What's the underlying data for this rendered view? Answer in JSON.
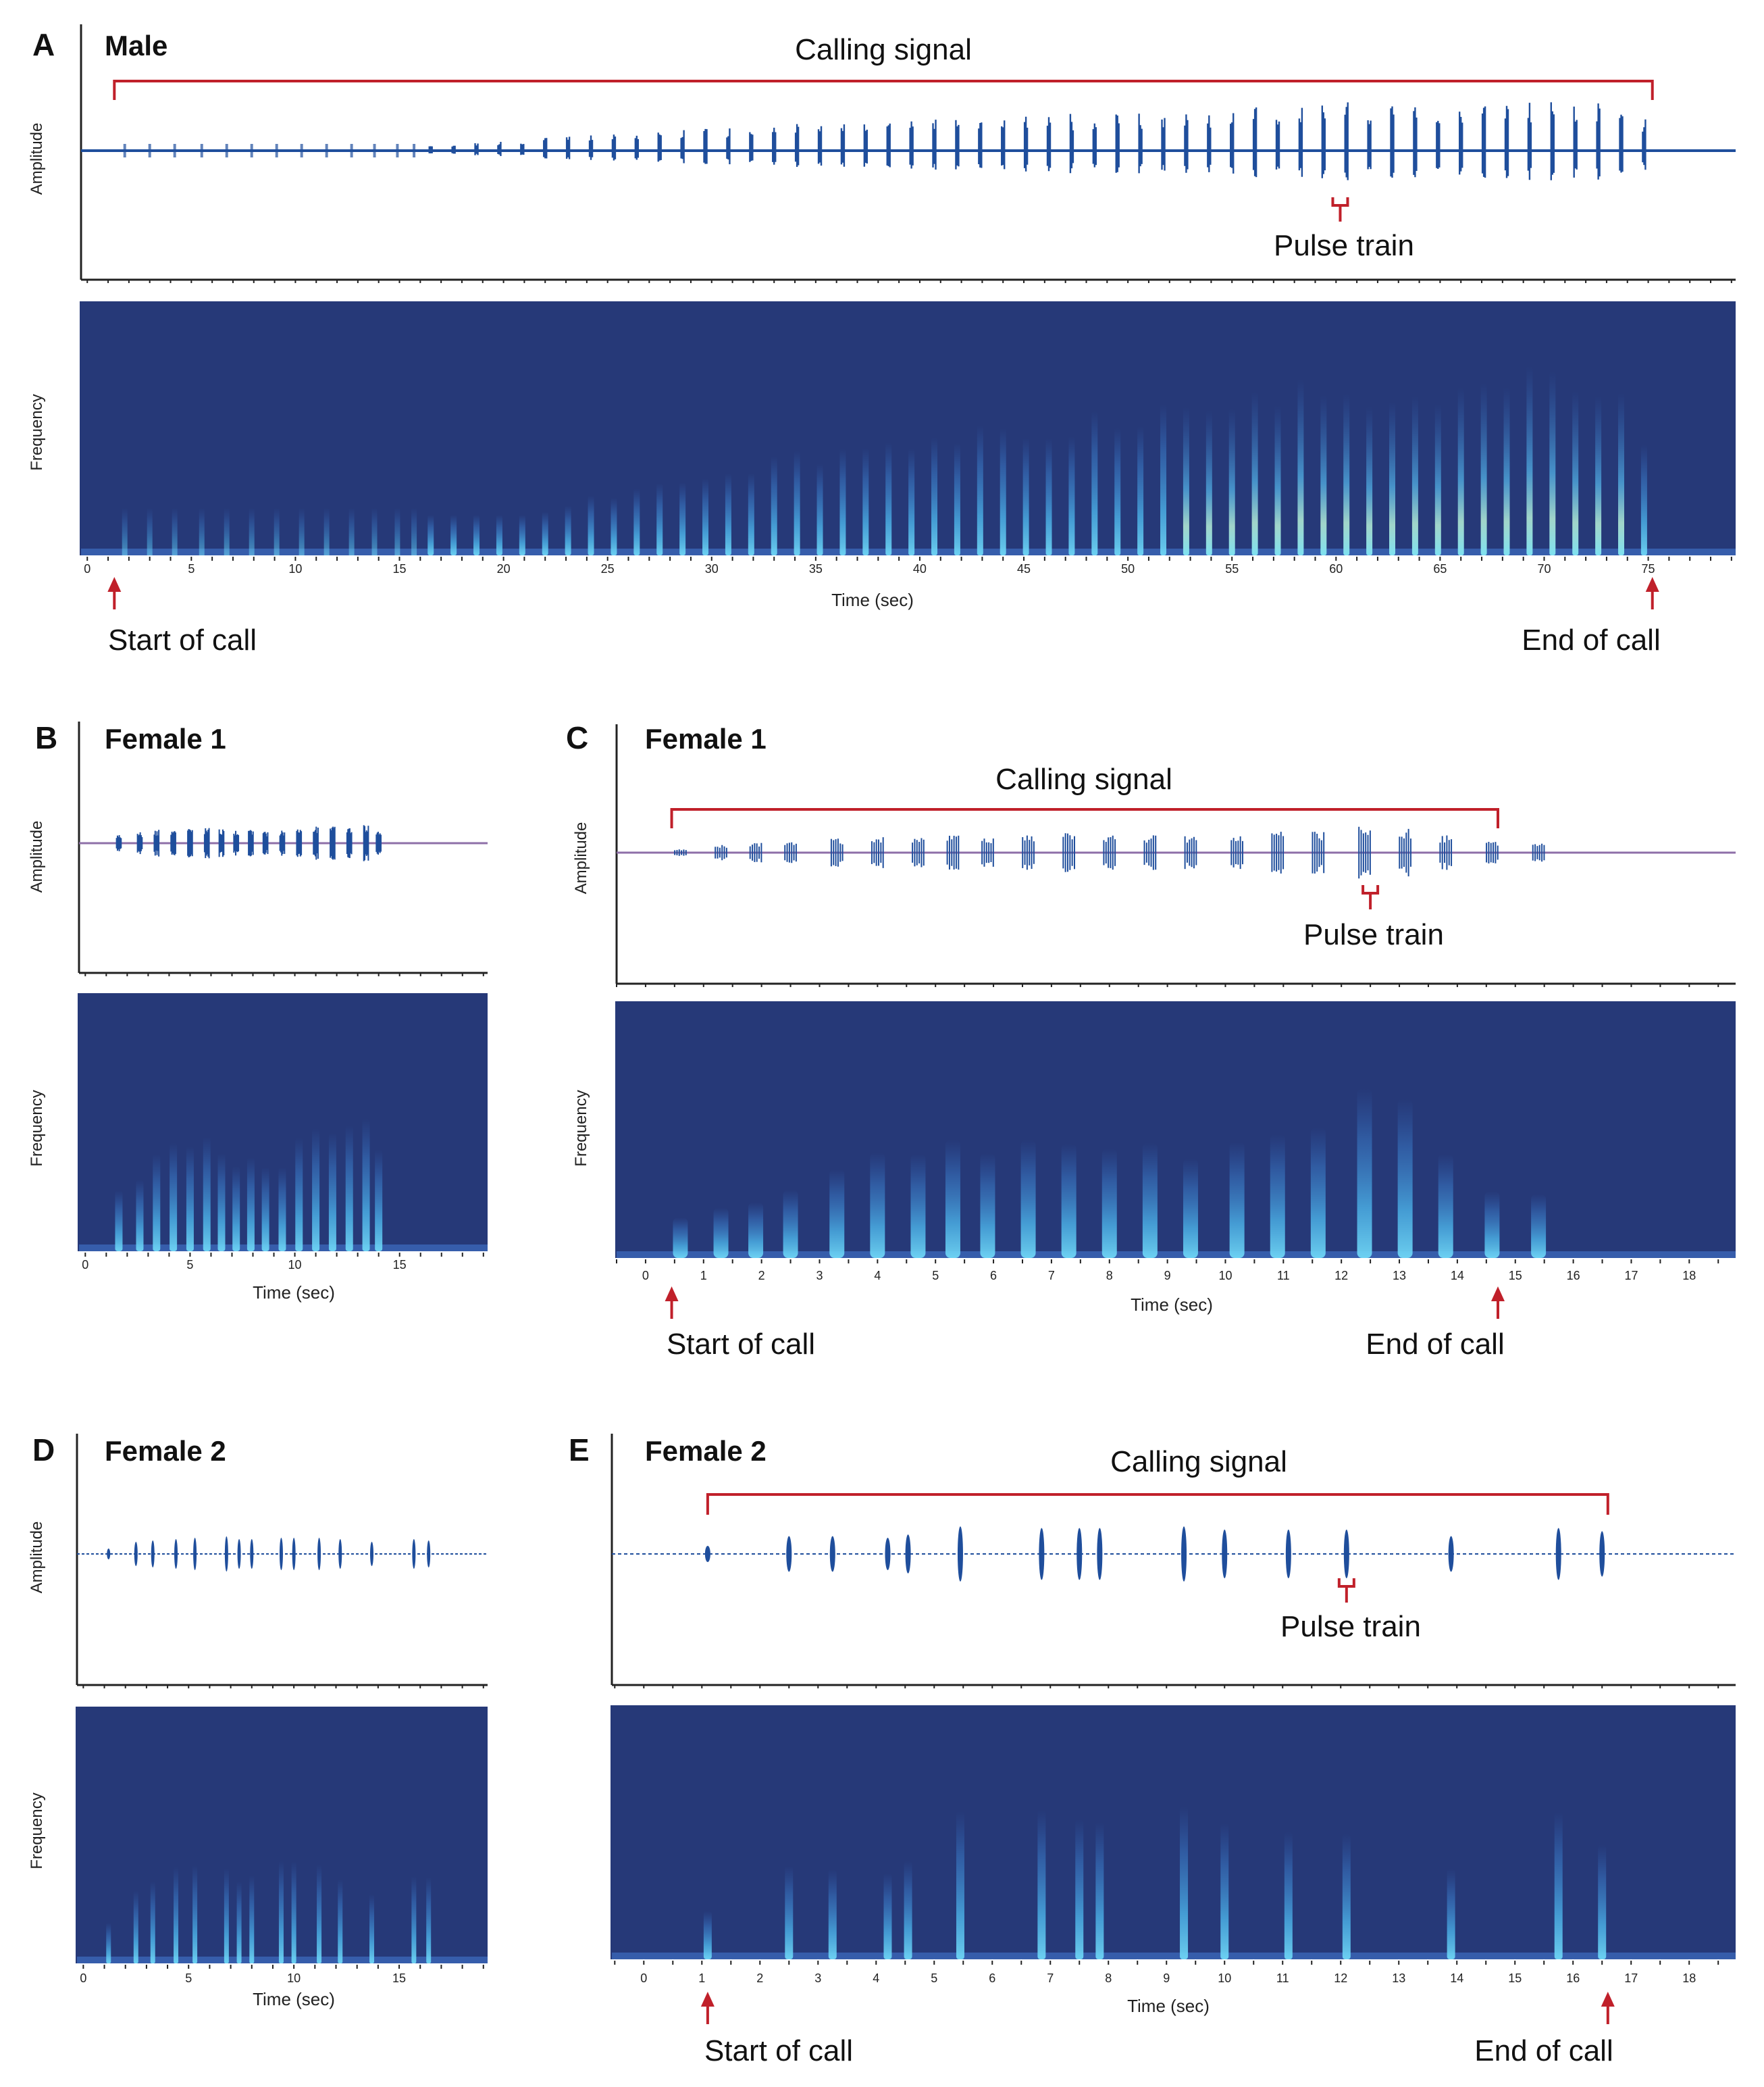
{
  "colors": {
    "waveform": "#1f4e9c",
    "spectrogram_bg": "#263978",
    "spectrogram_mark": "#5fc6f0",
    "spectrogram_hot": "#b6f0d8",
    "annotation": "#c0202a",
    "axis": "#222222",
    "baseline_female": "#8e6fa8"
  },
  "labels": {
    "amplitude": "Amplitude",
    "frequency": "Frequency",
    "time": "Time (sec)",
    "calling_signal": "Calling signal",
    "pulse_train": "Pulse train",
    "start_of_call": "Start of call",
    "end_of_call": "End of call"
  },
  "chart_data": [
    {
      "id": "A",
      "panel_letter": "A",
      "title": "Male",
      "type": "waveform+spectrogram",
      "xlim": [
        -0.3,
        79.2
      ],
      "ticks": [
        0,
        5,
        10,
        15,
        20,
        25,
        30,
        35,
        40,
        45,
        50,
        55,
        60,
        65,
        70,
        75
      ],
      "minor_step": 1,
      "call_start": 1.3,
      "call_end": 75.2,
      "pulse_train_at": 60.2,
      "pulse_times": [
        16.5,
        17.6,
        18.7,
        19.8,
        20.9,
        22.0,
        23.1,
        24.2,
        25.3,
        26.4,
        27.5,
        28.6,
        29.7,
        30.8,
        31.9,
        33.0,
        34.1,
        35.2,
        36.3,
        37.4,
        38.5,
        39.6,
        40.7,
        41.8,
        42.9,
        44.0,
        45.1,
        46.2,
        47.3,
        48.4,
        49.5,
        50.6,
        51.7,
        52.8,
        53.9,
        55.0,
        56.1,
        57.2,
        58.3,
        59.4,
        60.5,
        61.6,
        62.7,
        63.8,
        64.9,
        66.0,
        67.1,
        68.2,
        69.3,
        70.4,
        71.5,
        72.6,
        73.7,
        74.8
      ],
      "pulse_amplitude": [
        0.08,
        0.1,
        0.13,
        0.16,
        0.19,
        0.22,
        0.25,
        0.27,
        0.3,
        0.32,
        0.35,
        0.37,
        0.39,
        0.41,
        0.43,
        0.45,
        0.47,
        0.48,
        0.5,
        0.52,
        0.53,
        0.55,
        0.56,
        0.58,
        0.59,
        0.6,
        0.62,
        0.63,
        0.64,
        0.66,
        0.67,
        0.68,
        0.7,
        0.71,
        0.72,
        0.74,
        0.75,
        0.77,
        0.79,
        0.82,
        0.86,
        0.8,
        0.78,
        0.8,
        0.82,
        0.84,
        0.85,
        0.86,
        0.86,
        0.85,
        0.84,
        0.82,
        0.75,
        0.55
      ],
      "faint_pulse_times": [
        1.8,
        3.0,
        4.2,
        5.5,
        6.7,
        7.9,
        9.1,
        10.3,
        11.5,
        12.7,
        13.8,
        14.9,
        15.7
      ]
    },
    {
      "id": "B",
      "panel_letter": "B",
      "title": "Female 1",
      "type": "waveform+spectrogram",
      "xlim": [
        -0.3,
        19.2
      ],
      "ticks": [
        0,
        5,
        10,
        15
      ],
      "minor_step": 1,
      "pulse_times": [
        1.6,
        2.6,
        3.4,
        4.2,
        5.0,
        5.8,
        6.5,
        7.2,
        7.9,
        8.6,
        9.4,
        10.2,
        11.0,
        11.8,
        12.6,
        13.4,
        14.0
      ],
      "pulse_amplitude": [
        0.35,
        0.45,
        0.55,
        0.6,
        0.65,
        0.65,
        0.6,
        0.55,
        0.55,
        0.5,
        0.55,
        0.65,
        0.7,
        0.7,
        0.75,
        0.8,
        0.55
      ]
    },
    {
      "id": "C",
      "panel_letter": "C",
      "title": "Female 1",
      "type": "waveform+spectrogram",
      "xlim": [
        -0.5,
        18.8
      ],
      "ticks": [
        0,
        1,
        2,
        3,
        4,
        5,
        6,
        7,
        8,
        9,
        10,
        11,
        12,
        13,
        14,
        15,
        16,
        17,
        18
      ],
      "minor_step": 0.5,
      "call_start": 0.45,
      "call_end": 14.7,
      "pulse_train_at": 12.5,
      "pulse_times": [
        0.6,
        1.3,
        1.9,
        2.5,
        3.3,
        4.0,
        4.7,
        5.3,
        5.9,
        6.6,
        7.3,
        8.0,
        8.7,
        9.4,
        10.2,
        10.9,
        11.6,
        12.4,
        13.1,
        13.8,
        14.6,
        15.4
      ],
      "pulse_amplitude": [
        0.1,
        0.25,
        0.3,
        0.35,
        0.45,
        0.5,
        0.55,
        0.55,
        0.5,
        0.55,
        0.6,
        0.55,
        0.55,
        0.55,
        0.6,
        0.65,
        0.65,
        0.8,
        0.75,
        0.55,
        0.35,
        0.3
      ]
    },
    {
      "id": "D",
      "panel_letter": "D",
      "title": "Female 2",
      "type": "waveform+spectrogram",
      "xlim": [
        -0.3,
        19.2
      ],
      "ticks": [
        0,
        5,
        10,
        15
      ],
      "minor_step": 1,
      "pulse_times": [
        1.2,
        2.5,
        3.3,
        4.4,
        5.3,
        6.8,
        7.4,
        8.0,
        9.4,
        10.0,
        11.2,
        12.2,
        13.7,
        15.7,
        16.4
      ],
      "pulse_amplitude": [
        0.2,
        0.45,
        0.5,
        0.55,
        0.6,
        0.65,
        0.55,
        0.55,
        0.6,
        0.6,
        0.6,
        0.55,
        0.45,
        0.55,
        0.5
      ]
    },
    {
      "id": "E",
      "panel_letter": "E",
      "title": "Female 2",
      "type": "waveform+spectrogram",
      "xlim": [
        -0.55,
        18.8
      ],
      "ticks": [
        0,
        1,
        2,
        3,
        4,
        5,
        6,
        7,
        8,
        9,
        10,
        11,
        12,
        13,
        14,
        15,
        16,
        17,
        18
      ],
      "minor_step": 0.5,
      "call_start": 1.1,
      "call_end": 16.6,
      "pulse_train_at": 12.1,
      "pulse_times": [
        1.1,
        2.5,
        3.25,
        4.2,
        4.55,
        5.45,
        6.85,
        7.5,
        7.85,
        9.3,
        10.0,
        11.1,
        12.1,
        13.9,
        15.75,
        16.5
      ],
      "pulse_amplitude": [
        0.25,
        0.55,
        0.55,
        0.5,
        0.6,
        0.85,
        0.8,
        0.8,
        0.8,
        0.85,
        0.75,
        0.75,
        0.75,
        0.55,
        0.8,
        0.7
      ]
    }
  ]
}
